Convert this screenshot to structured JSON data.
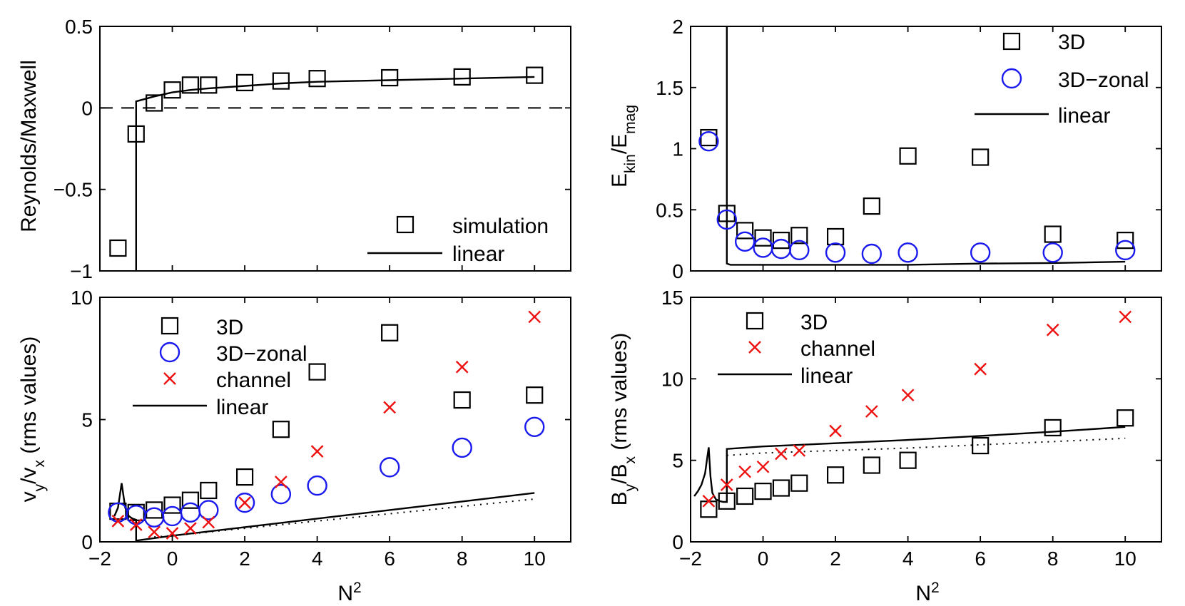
{
  "chart_data": [
    {
      "type": "scatter",
      "panel": "top-left",
      "xlim": [
        -2,
        11
      ],
      "ylim": [
        -1,
        0.5
      ],
      "xticks": [
        -2,
        0,
        2,
        4,
        6,
        8,
        10
      ],
      "xtick_labels": [
        "",
        "",
        "",
        "",
        "",
        "",
        ""
      ],
      "yticks": [
        -1,
        -0.5,
        0,
        0.5
      ],
      "ytick_labels": [
        "−1",
        "−0.5",
        "0",
        "0.5"
      ],
      "xlabel": "",
      "ylabel": "Reynolds/Maxwell",
      "legend_position": "bottom-right",
      "zero_line": "dashed",
      "series": [
        {
          "name": "simulation",
          "marker": "square",
          "color": "#000000",
          "x": [
            -1.5,
            -1,
            -0.5,
            0,
            0.5,
            1,
            2,
            3,
            4,
            6,
            8,
            10
          ],
          "y": [
            -0.86,
            -0.16,
            0.03,
            0.11,
            0.14,
            0.14,
            0.155,
            0.165,
            0.18,
            0.185,
            0.19,
            0.2
          ]
        },
        {
          "name": "linear",
          "line": "solid",
          "color": "#000000",
          "x": [
            -1,
            -1,
            -0.5,
            0,
            0.5,
            1,
            2,
            3,
            4,
            5,
            6,
            8,
            10
          ],
          "y": [
            -1,
            0.04,
            0.07,
            0.095,
            0.11,
            0.12,
            0.135,
            0.15,
            0.16,
            0.165,
            0.17,
            0.18,
            0.19
          ]
        }
      ]
    },
    {
      "type": "scatter",
      "panel": "top-right",
      "xlim": [
        -2,
        11
      ],
      "ylim": [
        0,
        2
      ],
      "xticks": [
        -2,
        0,
        2,
        4,
        6,
        8,
        10
      ],
      "xtick_labels": [
        "",
        "",
        "",
        "",
        "",
        "",
        ""
      ],
      "yticks": [
        0,
        0.5,
        1,
        1.5,
        2
      ],
      "ytick_labels": [
        "0",
        "0.5",
        "1",
        "1.5",
        "2"
      ],
      "xlabel": "",
      "ylabel_main": "E",
      "ylabel_sub1": "kin",
      "ylabel_mid": "/E",
      "ylabel_sub2": "mag",
      "legend_position": "top-right",
      "series": [
        {
          "name": "3D",
          "marker": "square",
          "color": "#000000",
          "x": [
            -1.5,
            -1,
            -0.5,
            0,
            0.5,
            1,
            2,
            3,
            4,
            6,
            8,
            10
          ],
          "y": [
            1.09,
            0.47,
            0.33,
            0.27,
            0.25,
            0.29,
            0.28,
            0.53,
            0.94,
            0.93,
            0.3,
            0.25
          ]
        },
        {
          "name": "3D−zonal",
          "marker": "circle",
          "color": "#1a1aee",
          "x": [
            -1.5,
            -1,
            -0.5,
            0,
            0.5,
            1,
            2,
            3,
            4,
            6,
            8,
            10
          ],
          "y": [
            1.06,
            0.42,
            0.24,
            0.19,
            0.18,
            0.17,
            0.15,
            0.14,
            0.15,
            0.15,
            0.15,
            0.17
          ]
        },
        {
          "name": "linear",
          "line": "solid",
          "color": "#000000",
          "x": [
            -1,
            -1,
            -0.9,
            0,
            2,
            4,
            6,
            8,
            10
          ],
          "y": [
            2,
            0.06,
            0.05,
            0.05,
            0.05,
            0.05,
            0.06,
            0.065,
            0.075
          ]
        }
      ]
    },
    {
      "type": "scatter",
      "panel": "bottom-left",
      "xlim": [
        -2,
        11
      ],
      "ylim": [
        0,
        10
      ],
      "xticks": [
        -2,
        0,
        2,
        4,
        6,
        8,
        10
      ],
      "xtick_labels": [
        "−2",
        "0",
        "2",
        "4",
        "6",
        "8",
        "10"
      ],
      "yticks": [
        0,
        5,
        10
      ],
      "ytick_labels": [
        "0",
        "5",
        "10"
      ],
      "xlabel_main": "N",
      "xlabel_sup": "2",
      "ylabel_a": "v",
      "ylabel_sub1": "y",
      "ylabel_b": "/v",
      "ylabel_sub2": "x",
      "ylabel_c": " (rms values)",
      "legend_position": "top-left",
      "series": [
        {
          "name": "3D",
          "marker": "square",
          "color": "#000000",
          "x": [
            -1.5,
            -1,
            -0.5,
            0,
            0.5,
            1,
            2,
            3,
            4,
            6,
            8,
            10
          ],
          "y": [
            1.25,
            1.2,
            1.3,
            1.5,
            1.7,
            2.1,
            2.65,
            4.6,
            6.95,
            8.55,
            5.8,
            6.0
          ]
        },
        {
          "name": "3D−zonal",
          "marker": "circle",
          "color": "#1a1aee",
          "x": [
            -1.5,
            -1,
            -0.5,
            0,
            0.5,
            1,
            2,
            3,
            4,
            6,
            8,
            10
          ],
          "y": [
            1.2,
            1.1,
            1.0,
            1.05,
            1.2,
            1.3,
            1.6,
            1.95,
            2.3,
            3.05,
            3.85,
            4.7
          ]
        },
        {
          "name": "channel",
          "marker": "x",
          "color": "#ee1111",
          "x": [
            -1.5,
            -1,
            -0.5,
            0,
            0.5,
            1,
            2,
            3,
            4,
            6,
            8,
            10
          ],
          "y": [
            0.85,
            0.7,
            0.4,
            0.35,
            0.55,
            0.8,
            1.6,
            2.45,
            3.7,
            5.5,
            7.15,
            9.2
          ]
        },
        {
          "name": "linear",
          "line": "solid",
          "color": "#000000",
          "x": [
            -1.6,
            -1.5,
            -1.4,
            -1.3,
            -1.2,
            -1.1,
            -1.0,
            -1.0,
            0,
            2,
            4,
            6,
            8,
            10
          ],
          "y": [
            1.05,
            1.4,
            2.4,
            1.4,
            1.05,
            0.95,
            0.9,
            0.05,
            0.25,
            0.6,
            0.95,
            1.3,
            1.65,
            2.0
          ]
        },
        {
          "name": "",
          "line": "dotted",
          "color": "#000000",
          "x": [
            -0.5,
            0,
            2,
            4,
            6,
            8,
            10
          ],
          "y": [
            0.2,
            0.25,
            0.55,
            0.85,
            1.15,
            1.45,
            1.75
          ]
        }
      ]
    },
    {
      "type": "scatter",
      "panel": "bottom-right",
      "xlim": [
        -2,
        11
      ],
      "ylim": [
        0,
        15
      ],
      "xticks": [
        -2,
        0,
        2,
        4,
        6,
        8,
        10
      ],
      "xtick_labels": [
        "−2",
        "0",
        "2",
        "4",
        "6",
        "8",
        "10"
      ],
      "yticks": [
        0,
        5,
        10,
        15
      ],
      "ytick_labels": [
        "0",
        "5",
        "10",
        "15"
      ],
      "xlabel_main": "N",
      "xlabel_sup": "2",
      "ylabel_a": "B",
      "ylabel_sub1": "y",
      "ylabel_b": "/B",
      "ylabel_sub2": "x",
      "ylabel_c": " (rms values)",
      "legend_position": "top-left",
      "series": [
        {
          "name": "3D",
          "marker": "square",
          "color": "#000000",
          "x": [
            -1.5,
            -1,
            -0.5,
            0,
            0.5,
            1,
            2,
            3,
            4,
            6,
            8,
            10
          ],
          "y": [
            2.0,
            2.5,
            2.8,
            3.1,
            3.3,
            3.6,
            4.1,
            4.7,
            5.0,
            5.9,
            7.0,
            7.6
          ]
        },
        {
          "name": "channel",
          "marker": "x",
          "color": "#ee1111",
          "x": [
            -1.5,
            -1,
            -0.5,
            0,
            0.5,
            1,
            2,
            3,
            4,
            6,
            8,
            10
          ],
          "y": [
            2.5,
            3.5,
            4.3,
            4.6,
            5.4,
            5.6,
            6.8,
            8.0,
            9.0,
            10.6,
            13.0,
            13.8
          ]
        },
        {
          "name": "linear",
          "line": "solid",
          "color": "#000000",
          "x": [
            -1.9,
            -1.8,
            -1.7,
            -1.6,
            -1.55,
            -1.5,
            -1.45,
            -1.4,
            -1.3,
            -1.2,
            -1.1,
            -1.0,
            -1.0,
            0,
            2,
            4,
            6,
            8,
            10
          ],
          "y": [
            2.8,
            3.1,
            3.5,
            4.2,
            5.0,
            5.8,
            4.0,
            3.0,
            2.6,
            2.5,
            2.45,
            2.45,
            5.7,
            5.85,
            6.05,
            6.25,
            6.5,
            6.75,
            7.05
          ]
        },
        {
          "name": "",
          "line": "dotted",
          "color": "#000000",
          "x": [
            -1,
            0,
            2,
            4,
            6,
            8,
            10
          ],
          "y": [
            5.3,
            5.45,
            5.6,
            5.75,
            5.95,
            6.15,
            6.35
          ]
        }
      ]
    }
  ]
}
